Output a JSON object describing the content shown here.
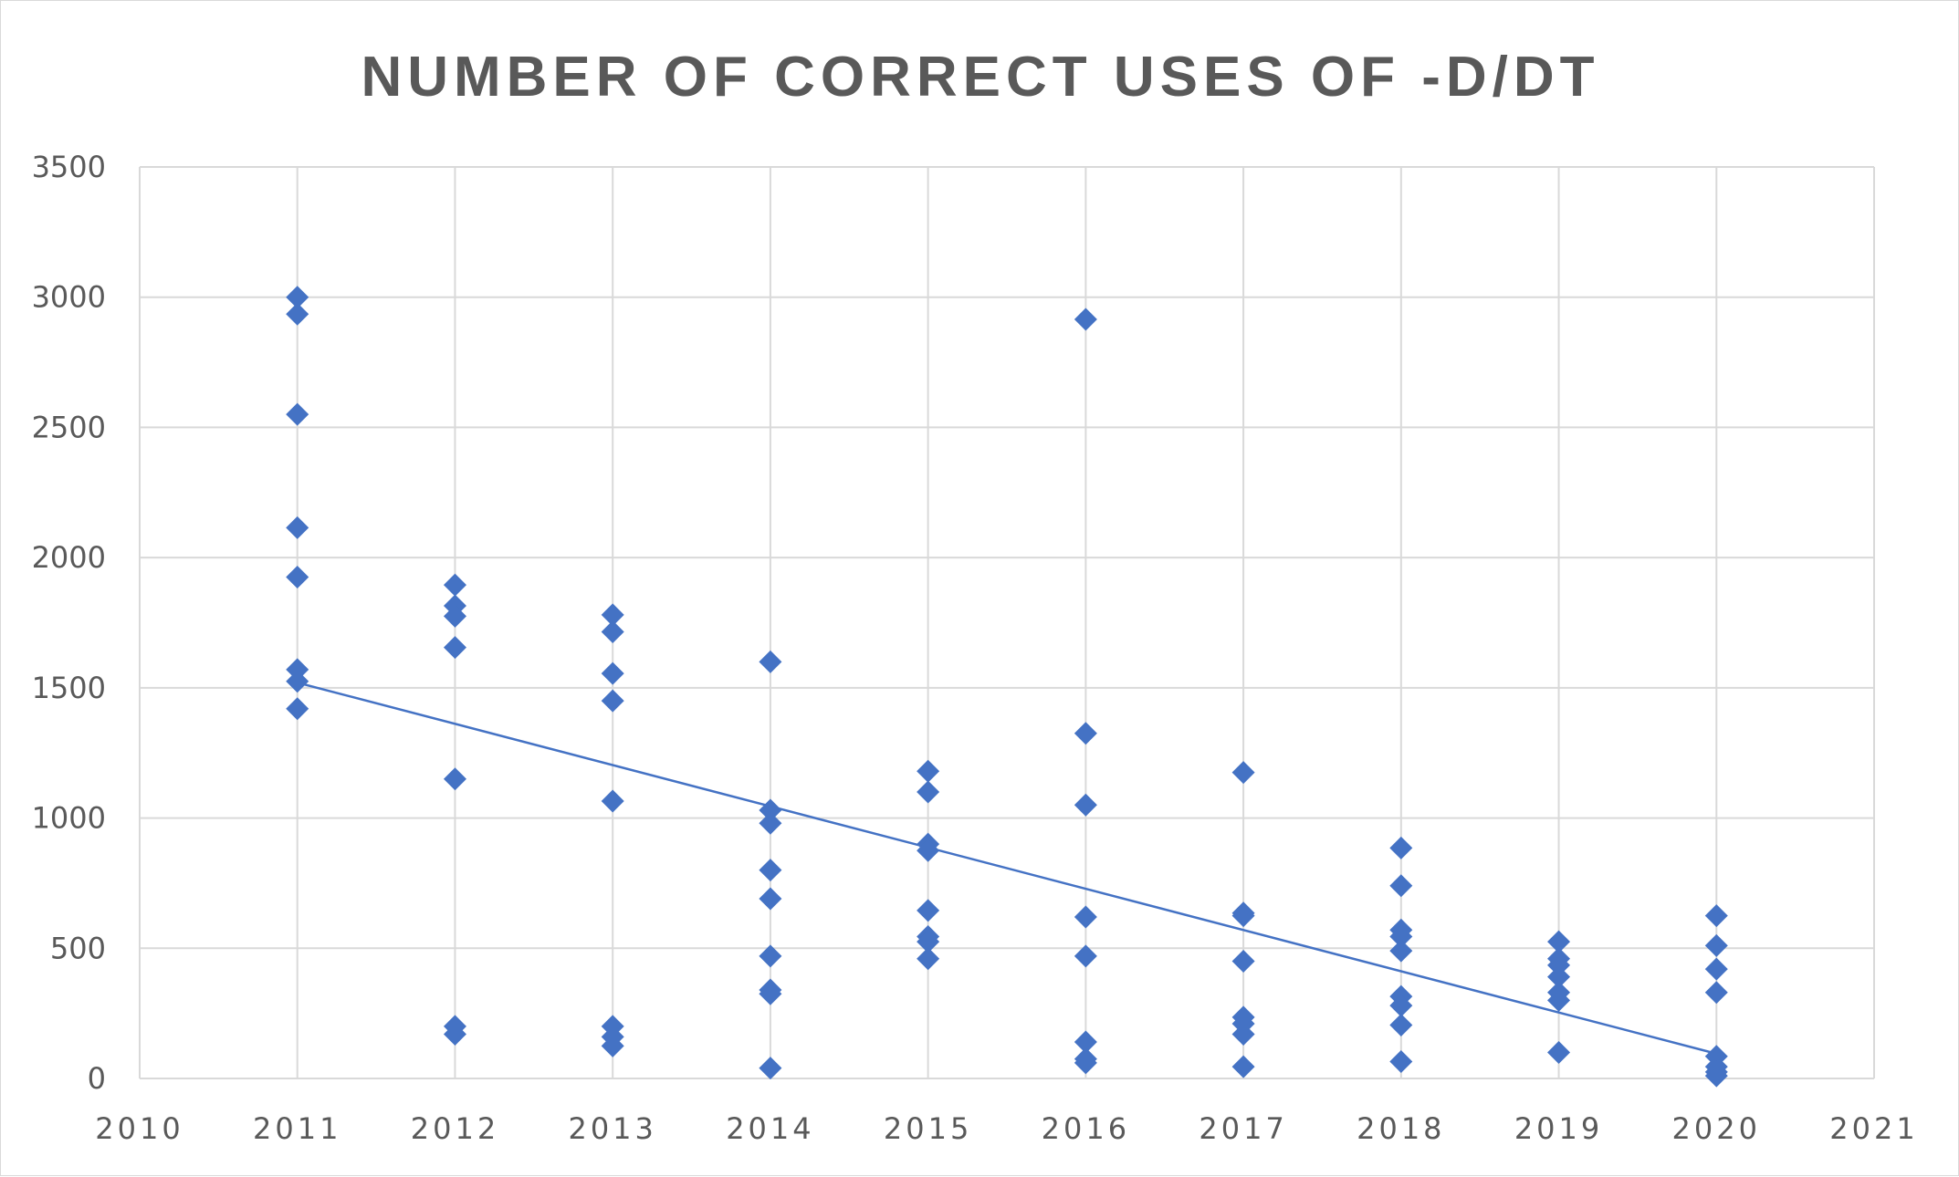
{
  "chart_data": {
    "type": "scatter",
    "title": "NUMBER OF CORRECT USES OF -D/DT",
    "xlabel": "",
    "ylabel": "",
    "xlim": [
      2010,
      2021
    ],
    "ylim": [
      0,
      3500
    ],
    "x_ticks": [
      "2010",
      "2011",
      "2012",
      "2013",
      "2014",
      "2015",
      "2016",
      "2017",
      "2018",
      "2019",
      "2020",
      "2021"
    ],
    "y_ticks": [
      "0",
      "500",
      "1000",
      "1500",
      "2000",
      "2500",
      "3000",
      "3500"
    ],
    "grid": true,
    "legend": "none",
    "point_color": "#4472c4",
    "marker": "diamond",
    "series": [
      {
        "points": [
          [
            2011,
            3000
          ],
          [
            2011,
            2935
          ],
          [
            2011,
            2550
          ],
          [
            2011,
            2115
          ],
          [
            2011,
            1925
          ],
          [
            2011,
            1570
          ],
          [
            2011,
            1525
          ],
          [
            2011,
            1420
          ],
          [
            2012,
            1895
          ],
          [
            2012,
            1815
          ],
          [
            2012,
            1775
          ],
          [
            2012,
            1655
          ],
          [
            2012,
            1150
          ],
          [
            2012,
            200
          ],
          [
            2012,
            170
          ],
          [
            2013,
            1780
          ],
          [
            2013,
            1715
          ],
          [
            2013,
            1555
          ],
          [
            2013,
            1450
          ],
          [
            2013,
            1065
          ],
          [
            2013,
            200
          ],
          [
            2013,
            160
          ],
          [
            2013,
            125
          ],
          [
            2014,
            1600
          ],
          [
            2014,
            1030
          ],
          [
            2014,
            980
          ],
          [
            2014,
            800
          ],
          [
            2014,
            690
          ],
          [
            2014,
            470
          ],
          [
            2014,
            340
          ],
          [
            2014,
            325
          ],
          [
            2014,
            40
          ],
          [
            2015,
            1180
          ],
          [
            2015,
            1100
          ],
          [
            2015,
            900
          ],
          [
            2015,
            875
          ],
          [
            2015,
            645
          ],
          [
            2015,
            545
          ],
          [
            2015,
            525
          ],
          [
            2015,
            460
          ],
          [
            2016,
            2915
          ],
          [
            2016,
            1325
          ],
          [
            2016,
            1050
          ],
          [
            2016,
            620
          ],
          [
            2016,
            470
          ],
          [
            2016,
            140
          ],
          [
            2016,
            75
          ],
          [
            2016,
            60
          ],
          [
            2017,
            1175
          ],
          [
            2017,
            635
          ],
          [
            2017,
            625
          ],
          [
            2017,
            450
          ],
          [
            2017,
            235
          ],
          [
            2017,
            210
          ],
          [
            2017,
            170
          ],
          [
            2017,
            45
          ],
          [
            2018,
            885
          ],
          [
            2018,
            740
          ],
          [
            2018,
            570
          ],
          [
            2018,
            545
          ],
          [
            2018,
            490
          ],
          [
            2018,
            315
          ],
          [
            2018,
            280
          ],
          [
            2018,
            205
          ],
          [
            2018,
            65
          ],
          [
            2019,
            525
          ],
          [
            2019,
            460
          ],
          [
            2019,
            435
          ],
          [
            2019,
            390
          ],
          [
            2019,
            330
          ],
          [
            2019,
            300
          ],
          [
            2019,
            100
          ],
          [
            2020,
            625
          ],
          [
            2020,
            510
          ],
          [
            2020,
            420
          ],
          [
            2020,
            330
          ],
          [
            2020,
            85
          ],
          [
            2020,
            45
          ],
          [
            2020,
            25
          ],
          [
            2020,
            10
          ]
        ]
      }
    ],
    "trendline": {
      "type": "linear",
      "color": "#4472c4",
      "x_range": [
        2011,
        2020
      ],
      "y_values": [
        1520,
        95
      ]
    }
  }
}
